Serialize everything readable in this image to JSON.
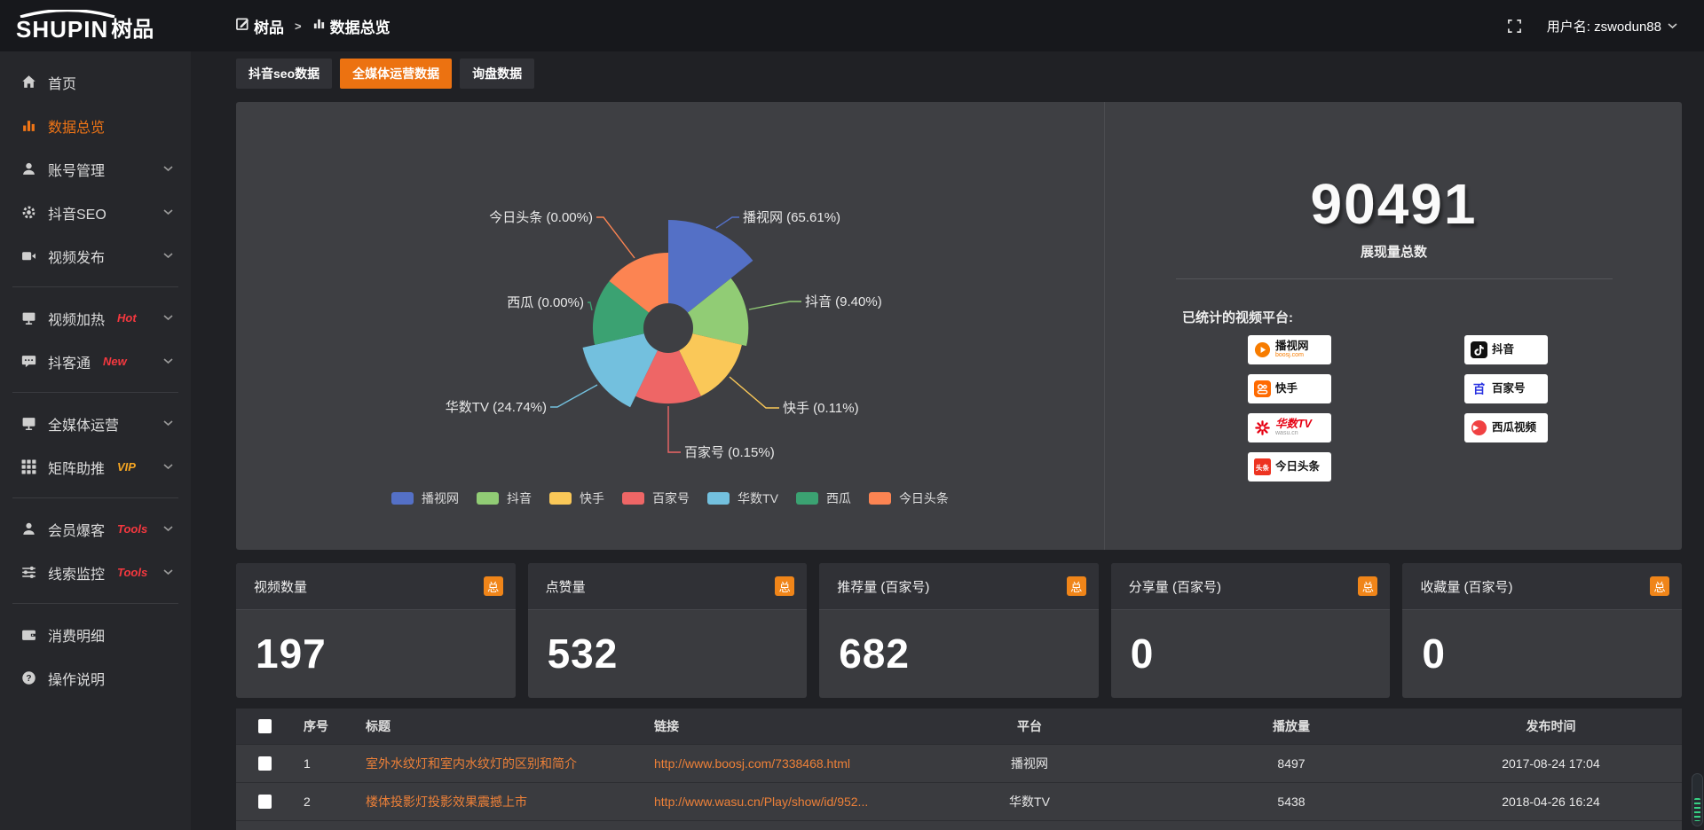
{
  "topbar": {
    "logo_en": "SHUPIN",
    "logo_cn": "树品",
    "breadcrumb": [
      "树品",
      "数据总览"
    ],
    "breadcrumb_sep": ">",
    "user_label": "用户名: zswodun88"
  },
  "sidebar": {
    "items": [
      {
        "icon": "home-icon",
        "label": "首页"
      },
      {
        "icon": "bar-chart-icon",
        "label": "数据总览",
        "active": true
      },
      {
        "icon": "user-icon",
        "label": "账号管理",
        "chevron": true
      },
      {
        "icon": "gear-icon",
        "label": "抖音SEO",
        "chevron": true
      },
      {
        "icon": "video-camera-icon",
        "label": "视频发布",
        "chevron": true,
        "divider_after": true
      },
      {
        "icon": "monitor-icon",
        "label": "视频加热",
        "tag": "Hot",
        "tag_style": "red",
        "chevron": true
      },
      {
        "icon": "chat-icon",
        "label": "抖客通",
        "tag": "New",
        "tag_style": "red",
        "chevron": true,
        "divider_after": true
      },
      {
        "icon": "screen-icon",
        "label": "全媒体运营",
        "chevron": true
      },
      {
        "icon": "grid-icon",
        "label": "矩阵助推",
        "tag": "VIP",
        "tag_style": "gold",
        "chevron": true,
        "divider_after": true
      },
      {
        "icon": "member-icon",
        "label": "会员爆客",
        "tag": "Tools",
        "tag_style": "red",
        "chevron": true
      },
      {
        "icon": "sliders-icon",
        "label": "线索监控",
        "tag": "Tools",
        "tag_style": "red",
        "chevron": true,
        "divider_after": true
      },
      {
        "icon": "wallet-icon",
        "label": "消费明细"
      },
      {
        "icon": "question-icon",
        "label": "操作说明"
      }
    ]
  },
  "tabs": [
    {
      "label": "抖音seo数据",
      "active": false
    },
    {
      "label": "全媒体运营数据",
      "active": true
    },
    {
      "label": "询盘数据",
      "active": false
    }
  ],
  "chart_data": {
    "type": "pie",
    "subtype": "nightingale-rose",
    "unit": "%",
    "slices": [
      {
        "name": "播视网",
        "value": 65.61,
        "color": "#5470c6"
      },
      {
        "name": "抖音",
        "value": 9.4,
        "color": "#91cc75"
      },
      {
        "name": "快手",
        "value": 0.11,
        "color": "#fac858"
      },
      {
        "name": "百家号",
        "value": 0.15,
        "color": "#ee6666"
      },
      {
        "name": "华数TV",
        "value": 24.74,
        "color": "#73c0de"
      },
      {
        "name": "西瓜",
        "value": 0.0,
        "color": "#3ba272"
      },
      {
        "name": "今日头条",
        "value": 0.0,
        "color": "#fc8452"
      }
    ],
    "legend": [
      "播视网",
      "抖音",
      "快手",
      "百家号",
      "华数TV",
      "西瓜",
      "今日头条"
    ],
    "legend_position": "bottom",
    "label_format": "{name} ({value}%)"
  },
  "summary": {
    "total_value": "90491",
    "total_label": "展现量总数",
    "platforms_title": "已统计的视频平台:",
    "platforms_left": [
      {
        "name": "播视网",
        "sub": "boosj.com",
        "icon": "boosj-logo"
      },
      {
        "name": "快手",
        "sub": "",
        "icon": "kuaishou-logo"
      },
      {
        "name": "华数TV",
        "sub": "wasu.cn",
        "icon": "wasu-logo"
      },
      {
        "name": "今日头条",
        "sub": "",
        "icon": "toutiao-logo"
      }
    ],
    "platforms_right": [
      {
        "name": "抖音",
        "sub": "",
        "icon": "douyin-logo"
      },
      {
        "name": "百家号",
        "sub": "",
        "icon": "baijiahao-logo"
      },
      {
        "name": "西瓜视频",
        "sub": "",
        "icon": "xigua-logo"
      }
    ]
  },
  "stat_cards": [
    {
      "title": "视频数量",
      "badge": "总",
      "value": "197"
    },
    {
      "title": "点赞量",
      "badge": "总",
      "value": "532"
    },
    {
      "title": "推荐量 (百家号)",
      "badge": "总",
      "value": "682"
    },
    {
      "title": "分享量 (百家号)",
      "badge": "总",
      "value": "0"
    },
    {
      "title": "收藏量 (百家号)",
      "badge": "总",
      "value": "0"
    }
  ],
  "table": {
    "headers": [
      "序号",
      "标题",
      "链接",
      "平台",
      "播放量",
      "发布时间"
    ],
    "rows": [
      {
        "cells": [
          "1",
          "室外水纹灯和室内水纹灯的区别和简介",
          "http://www.boosj.com/7338468.html",
          "播视网",
          "8497",
          "2017-08-24 17:04"
        ]
      },
      {
        "cells": [
          "2",
          "楼体投影灯投影效果震撼上市",
          "http://www.wasu.cn/Play/show/id/952...",
          "华数TV",
          "5438",
          "2018-04-26 16:24"
        ]
      },
      {
        "cells": [
          "",
          "",
          "",
          "",
          "",
          ""
        ]
      }
    ]
  },
  "colors": {
    "accent": "#ec7211",
    "badge": "#f08519",
    "link": "#ed8038",
    "active_menu": "#f07516",
    "panel": "#3e3f43",
    "tag_red": "#f5383f",
    "tag_gold": "#f5a623"
  }
}
